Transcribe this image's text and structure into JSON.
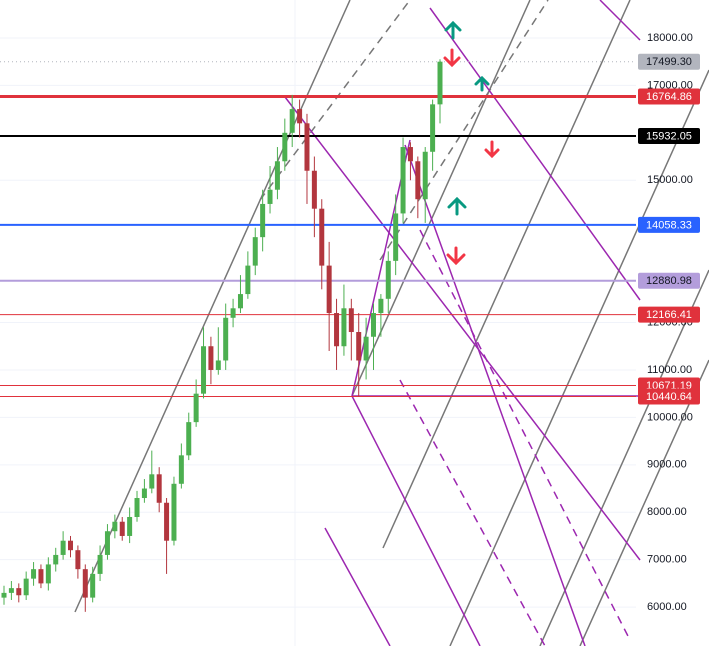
{
  "chart_data": {
    "type": "candlestick",
    "ylim": [
      5180,
      18800
    ],
    "yticks": [
      {
        "value": 6000,
        "label": "6000.00"
      },
      {
        "value": 7000,
        "label": "7000.00"
      },
      {
        "value": 8000,
        "label": "8000.00"
      },
      {
        "value": 9000,
        "label": "9000.00"
      },
      {
        "value": 10000,
        "label": "10000.00"
      },
      {
        "value": 11000,
        "label": "11000.00"
      },
      {
        "value": 12000,
        "label": "12000.00"
      },
      {
        "value": 15000,
        "label": "15000.00"
      },
      {
        "value": 17000,
        "label": "17000.00"
      },
      {
        "value": 18000,
        "label": "18000.00"
      }
    ],
    "grid": true,
    "up_color": "#4caf50",
    "down_color": "#b2363e",
    "open": [
      6200,
      6300,
      6400,
      6250,
      6600,
      6800,
      6500,
      6900,
      7100,
      7400,
      7200,
      6800,
      6200,
      6700,
      7100,
      7600,
      7800,
      7500,
      7900,
      8300,
      8500,
      8800,
      8200,
      7400,
      8600,
      9200,
      9900,
      10500,
      11500,
      11000,
      11200,
      12100,
      12300,
      12600,
      13200,
      13800,
      14500,
      14800,
      15400,
      16000,
      16500,
      16200,
      15200,
      14400,
      13200,
      12200,
      11500,
      12300,
      11800,
      11200,
      11700,
      12200,
      12500,
      13300,
      14300,
      15700,
      15400,
      14600,
      15600,
      16600
    ],
    "high": [
      6450,
      6550,
      6500,
      6750,
      6950,
      6900,
      7050,
      7250,
      7600,
      7500,
      7300,
      6900,
      6850,
      7300,
      7750,
      7950,
      7900,
      8100,
      8450,
      8700,
      9300,
      8950,
      8300,
      8750,
      9450,
      10100,
      10800,
      11900,
      11700,
      11900,
      12400,
      12500,
      13000,
      13500,
      14000,
      14800,
      15300,
      15700,
      16300,
      16800,
      16700,
      16400,
      15500,
      14600,
      13700,
      12500,
      12800,
      12500,
      12200,
      12100,
      12400,
      12600,
      13500,
      14700,
      15900,
      15800,
      15500,
      15700,
      16700,
      17550
    ],
    "low": [
      6050,
      6150,
      6100,
      6150,
      6450,
      6400,
      6350,
      6750,
      7000,
      7050,
      6600,
      5900,
      6100,
      6550,
      7000,
      7450,
      7400,
      7350,
      7800,
      8200,
      8400,
      8000,
      6700,
      7300,
      8500,
      9100,
      9800,
      10400,
      10700,
      10900,
      11000,
      11900,
      12200,
      12500,
      13000,
      13500,
      14300,
      14600,
      15200,
      15700,
      15900,
      14500,
      13800,
      12700,
      11400,
      11000,
      11300,
      11200,
      10440,
      10800,
      11000,
      11700,
      12200,
      13000,
      14100,
      15000,
      14200,
      14100,
      15200,
      16200
    ],
    "close": [
      6300,
      6400,
      6250,
      6600,
      6800,
      6500,
      6900,
      7100,
      7400,
      7200,
      6800,
      6200,
      6700,
      7100,
      7600,
      7800,
      7500,
      7900,
      8300,
      8500,
      8800,
      8200,
      7400,
      8600,
      9200,
      9900,
      10500,
      11500,
      11000,
      11200,
      12100,
      12300,
      12600,
      13200,
      13800,
      14500,
      14800,
      15400,
      16000,
      16500,
      16200,
      15200,
      14400,
      13200,
      12200,
      11500,
      12300,
      11800,
      11200,
      11700,
      12200,
      12500,
      13300,
      14300,
      15700,
      15400,
      14600,
      15600,
      16600,
      17499.3
    ],
    "levels": [
      {
        "value": 17499.3,
        "label": "17499.30",
        "color": "#b2b5be"
      },
      {
        "value": 16764.86,
        "label": "16764.86",
        "color": "#e0323c"
      },
      {
        "value": 15932.05,
        "label": "15932.05",
        "color": "#000000"
      },
      {
        "value": 14058.33,
        "label": "14058.33",
        "color": "#2962ff"
      },
      {
        "value": 12880.98,
        "label": "12880.98",
        "color": "#b39ddb"
      },
      {
        "value": 12166.41,
        "label": "12166.41",
        "color": "#e0323c"
      },
      {
        "value": 10671.19,
        "label": "10671.19",
        "color": "#e0323c"
      },
      {
        "value": 10440.64,
        "label": "10440.64",
        "color": "#e0323c"
      }
    ]
  }
}
